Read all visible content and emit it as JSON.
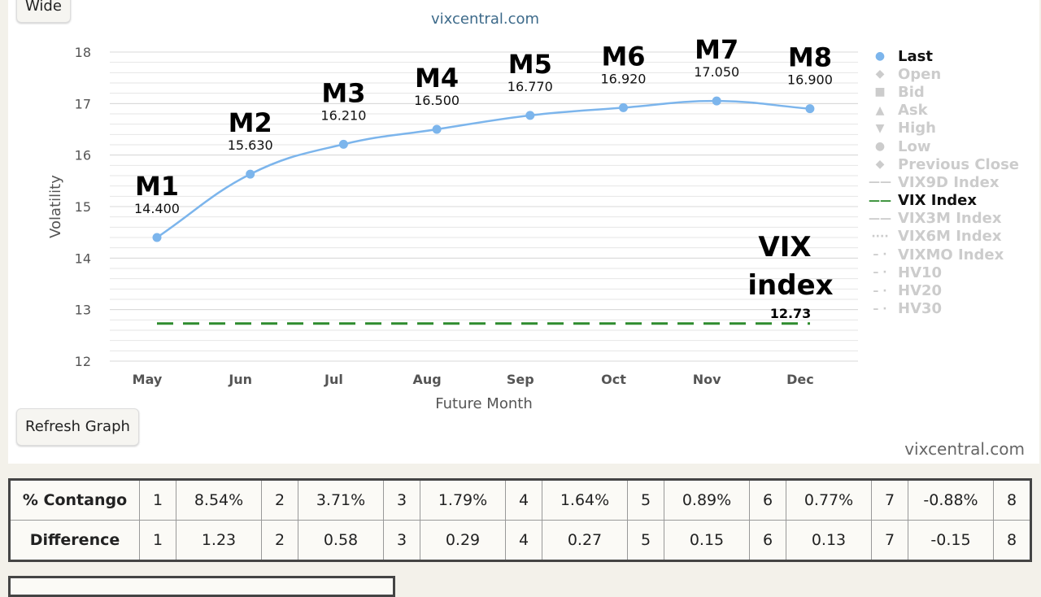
{
  "buttons": {
    "wide": "Wide",
    "refresh": "Refresh Graph"
  },
  "subtitle": "vixcentral.com",
  "credit": "vixcentral.com",
  "chart_data": {
    "type": "line",
    "xlabel": "Future Month",
    "ylabel": "Volatility",
    "categories": [
      "May",
      "Jun",
      "Jul",
      "Aug",
      "Sep",
      "Oct",
      "Nov",
      "Dec"
    ],
    "ylim": [
      12,
      18
    ],
    "yticks": [
      12,
      13,
      14,
      15,
      16,
      17,
      18
    ],
    "grid": true,
    "legend_placement": "right",
    "series": [
      {
        "name": "Last",
        "color": "#7cb5ec",
        "values": [
          14.4,
          15.63,
          16.21,
          16.5,
          16.77,
          16.92,
          17.05,
          16.9
        ],
        "labels": [
          "14.400",
          "15.630",
          "16.210",
          "16.500",
          "16.770",
          "16.920",
          "17.050",
          "16.900"
        ],
        "annotations": [
          "M1",
          "M2",
          "M3",
          "M4",
          "M5",
          "M6",
          "M7",
          "M8"
        ]
      },
      {
        "name": "VIX Index",
        "color": "#2e8b2e",
        "style": "dashed",
        "value": 12.73,
        "label": "12.73",
        "annotation": [
          "VIX",
          "index"
        ]
      }
    ],
    "legend": [
      {
        "name": "Last",
        "active": true,
        "symbol": "●"
      },
      {
        "name": "Open",
        "active": false,
        "symbol": "◆"
      },
      {
        "name": "Bid",
        "active": false,
        "symbol": "■"
      },
      {
        "name": "Ask",
        "active": false,
        "symbol": "▲"
      },
      {
        "name": "High",
        "active": false,
        "symbol": "▼"
      },
      {
        "name": "Low",
        "active": false,
        "symbol": "●"
      },
      {
        "name": "Previous Close",
        "active": false,
        "symbol": "◆"
      },
      {
        "name": "VIX9D Index",
        "active": false,
        "symbol": "——"
      },
      {
        "name": "VIX Index",
        "active": true,
        "symbol": "——"
      },
      {
        "name": "VIX3M Index",
        "active": false,
        "symbol": "——"
      },
      {
        "name": "VIX6M Index",
        "active": false,
        "symbol": "····"
      },
      {
        "name": "VIXMO Index",
        "active": false,
        "symbol": "– ·"
      },
      {
        "name": "HV10",
        "active": false,
        "symbol": "– ·"
      },
      {
        "name": "HV20",
        "active": false,
        "symbol": "– ·"
      },
      {
        "name": "HV30",
        "active": false,
        "symbol": "– ·"
      }
    ]
  },
  "table": {
    "rows": [
      {
        "header": "% Contango",
        "cells": [
          "1",
          "8.54%",
          "2",
          "3.71%",
          "3",
          "1.79%",
          "4",
          "1.64%",
          "5",
          "0.89%",
          "6",
          "0.77%",
          "7",
          "-0.88%",
          "8"
        ]
      },
      {
        "header": "Difference",
        "cells": [
          "1",
          "1.23",
          "2",
          "0.58",
          "3",
          "0.29",
          "4",
          "0.27",
          "5",
          "0.15",
          "6",
          "0.13",
          "7",
          "-0.15",
          "8"
        ]
      }
    ]
  }
}
